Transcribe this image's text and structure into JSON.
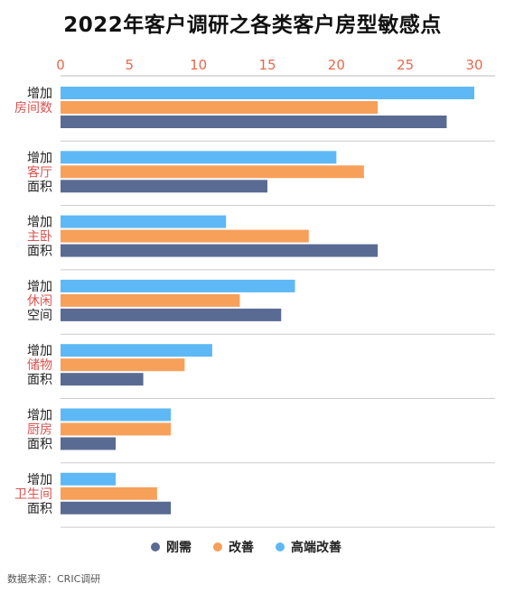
{
  "title": "2022年客户调研之各类客户房型敏感点",
  "source": "数据来源：CRIC调研",
  "colors": {
    "rigid": "#5a6b93",
    "improve": "#f7a05a",
    "highend": "#5eb8f5",
    "highlight_text": "#d9534f",
    "axis_text": "#e8674a"
  },
  "chart_data": {
    "type": "bar",
    "orientation": "horizontal",
    "xlim": [
      0,
      30
    ],
    "x_ticks": [
      "0",
      "5",
      "10",
      "15",
      "20",
      "25",
      "30"
    ],
    "categories": [
      {
        "prefix": "增加",
        "name": "房间数",
        "suffix": ""
      },
      {
        "prefix": "增加",
        "name": "客厅",
        "suffix": "面积"
      },
      {
        "prefix": "增加",
        "name": "主卧",
        "suffix": "面积"
      },
      {
        "prefix": "增加",
        "name": "休闲",
        "suffix": "空间"
      },
      {
        "prefix": "增加",
        "name": "储物",
        "suffix": "面积"
      },
      {
        "prefix": "增加",
        "name": "厨房",
        "suffix": "面积"
      },
      {
        "prefix": "增加",
        "name": "卫生间",
        "suffix": "面积"
      }
    ],
    "series": [
      {
        "name": "高端改善",
        "color": "#5eb8f5",
        "values": [
          30,
          20,
          12,
          17,
          11,
          8,
          4
        ]
      },
      {
        "name": "改善",
        "color": "#f7a05a",
        "values": [
          23,
          22,
          18,
          13,
          9,
          8,
          7
        ]
      },
      {
        "name": "刚需",
        "color": "#5a6b93",
        "values": [
          28,
          15,
          23,
          16,
          6,
          4,
          8
        ]
      }
    ],
    "legend": [
      {
        "name": "刚需",
        "color": "#5a6b93"
      },
      {
        "name": "改善",
        "color": "#f7a05a"
      },
      {
        "name": "高端改善",
        "color": "#5eb8f5"
      }
    ],
    "legend_position": "bottom",
    "grid": false
  }
}
